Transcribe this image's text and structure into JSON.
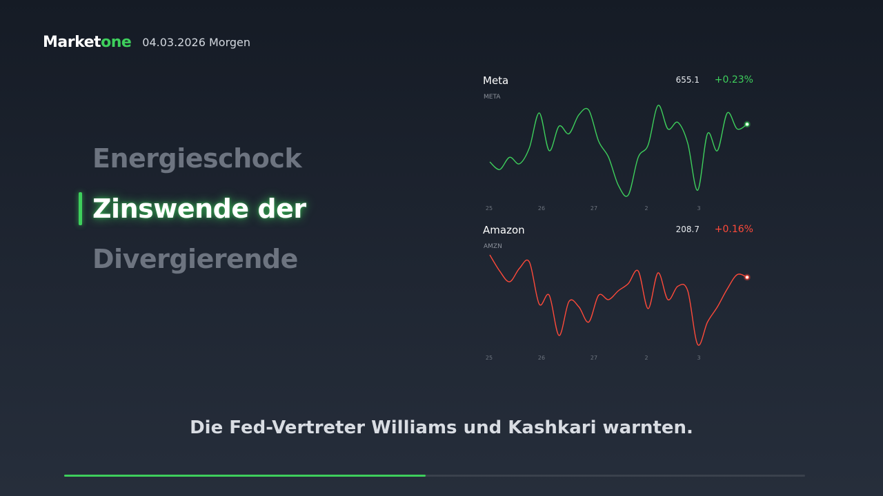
{
  "header": {
    "brand_main": "Market",
    "brand_accent": "one",
    "date_label": "04.03.2026 Morgen"
  },
  "topics": [
    {
      "label": "Energieschock",
      "active": false
    },
    {
      "label": "Zinswende der",
      "active": true
    },
    {
      "label": "Divergierende",
      "active": false
    }
  ],
  "charts": [
    {
      "name": "Meta",
      "ticker": "META",
      "price": "655.1",
      "change": "+0.23%",
      "color": "#3ecf5c",
      "x_ticks": [
        "25",
        "26",
        "27",
        "2",
        "3"
      ]
    },
    {
      "name": "Amazon",
      "ticker": "AMZN",
      "price": "208.7",
      "change": "+0.16%",
      "color": "#ff4a3a",
      "x_ticks": [
        "25",
        "26",
        "27",
        "2",
        "3"
      ]
    }
  ],
  "chart_data": [
    {
      "type": "line",
      "title": "Meta",
      "x_tick_labels": [
        "25",
        "26",
        "27",
        "2",
        "3"
      ],
      "series": [
        {
          "name": "META",
          "values": [
            40,
            32,
            45,
            38,
            55,
            92,
            52,
            78,
            70,
            90,
            95,
            62,
            45,
            15,
            5,
            45,
            58,
            100,
            75,
            82,
            60,
            10,
            70,
            52,
            92,
            75,
            80
          ]
        }
      ],
      "last_value": "655.1",
      "change": "+0.23%"
    },
    {
      "type": "line",
      "title": "Amazon",
      "x_tick_labels": [
        "25",
        "26",
        "27",
        "2",
        "3"
      ],
      "series": [
        {
          "name": "AMZN",
          "values": [
            100,
            82,
            70,
            85,
            92,
            45,
            55,
            10,
            48,
            42,
            25,
            55,
            50,
            60,
            68,
            82,
            40,
            80,
            50,
            65,
            60,
            0,
            25,
            42,
            62,
            78,
            75
          ]
        }
      ],
      "last_value": "208.7",
      "change": "+0.16%"
    }
  ],
  "subtitle": "Die Fed-Vertreter Williams und Kashkari warnten.",
  "progress": {
    "fraction": 0.488
  }
}
